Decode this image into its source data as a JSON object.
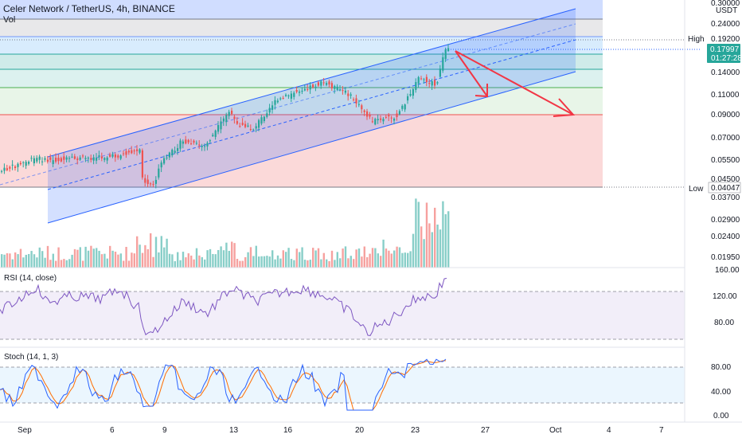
{
  "header": {
    "symbol_line": "Celer Network / TetherUS, 4h, BINANCE",
    "vol_label": "Vol"
  },
  "currency": "USDT",
  "price_axis": {
    "ticks": [
      "0.24000",
      "0.19200",
      "0.14000",
      "0.11000",
      "0.09000",
      "0.07000",
      "0.05500",
      "0.04500",
      "0.03700",
      "0.02900",
      "0.02400",
      "0.01950"
    ],
    "top_partial": "0.30000",
    "high_label": "High",
    "high_value": "0.19200",
    "low_label": "Low",
    "low_value": "0.04047",
    "current_price": "0.17997",
    "countdown": "01:27:28"
  },
  "rsi": {
    "label": "RSI (14, close)",
    "ticks": [
      "160.00",
      "120.00",
      "80.00"
    ]
  },
  "stoch": {
    "label": "Stoch (14, 1, 3)",
    "ticks": [
      "80.00",
      "40.00",
      "0.00"
    ]
  },
  "time_axis": {
    "ticks": [
      "Sep",
      "6",
      "9",
      "13",
      "16",
      "20",
      "23",
      "27",
      "Oct",
      "4",
      "7"
    ]
  },
  "colors": {
    "up": "#26a69a",
    "down": "#ef5350",
    "channel": "#2962ff",
    "arrow": "#f23645",
    "rsi_line": "#7e57c2",
    "stoch_k": "#2962ff",
    "stoch_d": "#ff6d00"
  },
  "chart_data": {
    "type": "candlestick",
    "timeframe": "4h",
    "price_levels": [
      0.24,
      0.192,
      0.14,
      0.11,
      0.09,
      0.07,
      0.055,
      0.045,
      0.037,
      0.029,
      0.024,
      0.0195
    ],
    "high": 0.192,
    "low": 0.04047,
    "last": 0.17997
  }
}
